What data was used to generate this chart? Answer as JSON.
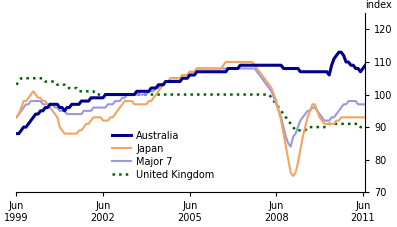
{
  "title": "",
  "ylabel": "index",
  "ylim": [
    70,
    125
  ],
  "yticks": [
    70,
    80,
    90,
    100,
    110,
    120
  ],
  "xlim": [
    0,
    145
  ],
  "xtick_positions": [
    0,
    36,
    72,
    108,
    144
  ],
  "xtick_labels": [
    "Jun\n1999",
    "Jun\n2002",
    "Jun\n2005",
    "Jun\n2008",
    "Jun\n2011"
  ],
  "australia_color": "#00008B",
  "japan_color": "#F4A460",
  "major7_color": "#9999DD",
  "uk_color": "#006400",
  "australia_lw": 2.2,
  "japan_lw": 1.5,
  "major7_lw": 1.5,
  "uk_lw": 1.8,
  "legend_labels": [
    "Australia",
    "Japan",
    "Major 7",
    "United Kingdom"
  ],
  "australia": [
    88,
    88,
    89,
    90,
    90,
    91,
    92,
    93,
    94,
    94,
    95,
    95,
    96,
    96,
    97,
    97,
    97,
    97,
    96,
    96,
    95,
    96,
    96,
    97,
    97,
    97,
    97,
    98,
    98,
    98,
    98,
    99,
    99,
    99,
    99,
    99,
    99,
    100,
    100,
    100,
    100,
    100,
    100,
    100,
    100,
    100,
    100,
    100,
    100,
    100,
    101,
    101,
    101,
    101,
    101,
    101,
    102,
    102,
    102,
    103,
    103,
    103,
    104,
    104,
    104,
    104,
    104,
    104,
    104,
    105,
    105,
    105,
    106,
    106,
    106,
    107,
    107,
    107,
    107,
    107,
    107,
    107,
    107,
    107,
    107,
    107,
    107,
    107,
    108,
    108,
    108,
    108,
    108,
    109,
    109,
    109,
    109,
    109,
    109,
    109,
    109,
    109,
    109,
    109,
    109,
    109,
    109,
    109,
    109,
    109,
    109,
    108,
    108,
    108,
    108,
    108,
    108,
    108,
    107,
    107,
    107,
    107,
    107,
    107,
    107,
    107,
    107,
    107,
    107,
    107,
    106,
    109,
    111,
    112,
    113,
    113,
    112,
    110,
    110,
    109,
    109,
    108,
    108,
    107,
    108,
    109
  ],
  "japan": [
    93,
    94,
    96,
    98,
    98,
    99,
    100,
    101,
    100,
    99,
    99,
    98,
    98,
    97,
    96,
    95,
    94,
    93,
    90,
    89,
    88,
    88,
    88,
    88,
    88,
    88,
    89,
    89,
    90,
    91,
    91,
    92,
    93,
    93,
    93,
    93,
    92,
    92,
    92,
    93,
    93,
    94,
    95,
    96,
    97,
    98,
    98,
    98,
    98,
    97,
    97,
    97,
    97,
    97,
    97,
    98,
    98,
    99,
    100,
    101,
    102,
    103,
    104,
    104,
    105,
    105,
    105,
    105,
    105,
    106,
    106,
    106,
    107,
    107,
    107,
    108,
    108,
    108,
    108,
    108,
    108,
    108,
    108,
    108,
    108,
    108,
    109,
    110,
    110,
    110,
    110,
    110,
    110,
    110,
    110,
    110,
    110,
    110,
    110,
    109,
    108,
    107,
    106,
    105,
    104,
    103,
    102,
    100,
    98,
    95,
    92,
    88,
    84,
    80,
    76,
    75,
    76,
    79,
    83,
    87,
    90,
    93,
    95,
    97,
    97,
    95,
    93,
    92,
    91,
    91,
    91,
    91,
    91,
    92,
    92,
    93,
    93,
    93,
    93,
    93,
    93,
    93,
    93,
    93,
    93,
    93
  ],
  "major7": [
    93,
    94,
    95,
    96,
    97,
    97,
    98,
    98,
    98,
    98,
    98,
    97,
    97,
    97,
    97,
    97,
    96,
    96,
    95,
    95,
    95,
    94,
    94,
    94,
    94,
    94,
    94,
    94,
    95,
    95,
    95,
    95,
    96,
    96,
    96,
    96,
    96,
    96,
    97,
    97,
    97,
    98,
    98,
    98,
    99,
    99,
    100,
    100,
    100,
    100,
    100,
    100,
    100,
    100,
    100,
    101,
    101,
    101,
    102,
    102,
    103,
    103,
    104,
    104,
    105,
    105,
    105,
    105,
    105,
    106,
    106,
    106,
    107,
    107,
    107,
    108,
    108,
    108,
    108,
    108,
    108,
    108,
    108,
    108,
    108,
    108,
    108,
    108,
    108,
    108,
    108,
    108,
    108,
    108,
    108,
    108,
    108,
    108,
    108,
    108,
    107,
    106,
    105,
    104,
    103,
    102,
    101,
    99,
    97,
    95,
    93,
    90,
    87,
    85,
    84,
    87,
    88,
    90,
    92,
    93,
    94,
    95,
    95,
    96,
    96,
    95,
    94,
    93,
    92,
    92,
    92,
    93,
    93,
    94,
    95,
    96,
    97,
    97,
    98,
    98,
    98,
    98,
    97,
    97,
    97,
    97
  ],
  "uk": [
    103,
    104,
    105,
    105,
    105,
    105,
    105,
    105,
    105,
    105,
    105,
    105,
    104,
    104,
    104,
    104,
    104,
    103,
    103,
    103,
    103,
    102,
    102,
    102,
    102,
    102,
    101,
    101,
    101,
    101,
    101,
    101,
    101,
    100,
    100,
    100,
    100,
    100,
    100,
    100,
    100,
    100,
    100,
    100,
    100,
    100,
    100,
    100,
    100,
    100,
    100,
    100,
    100,
    100,
    100,
    100,
    100,
    100,
    100,
    100,
    100,
    100,
    100,
    100,
    100,
    100,
    100,
    100,
    100,
    100,
    100,
    100,
    100,
    100,
    100,
    100,
    100,
    100,
    100,
    100,
    100,
    100,
    100,
    100,
    100,
    100,
    100,
    100,
    100,
    100,
    100,
    100,
    100,
    100,
    100,
    100,
    100,
    100,
    100,
    100,
    100,
    100,
    100,
    100,
    100,
    100,
    99,
    98,
    97,
    96,
    95,
    94,
    93,
    92,
    91,
    90,
    89,
    89,
    89,
    89,
    89,
    90,
    90,
    90,
    90,
    90,
    90,
    90,
    90,
    90,
    91,
    91,
    91,
    91,
    91,
    91,
    91,
    91,
    91,
    91,
    91,
    91,
    91,
    90,
    90,
    90
  ]
}
